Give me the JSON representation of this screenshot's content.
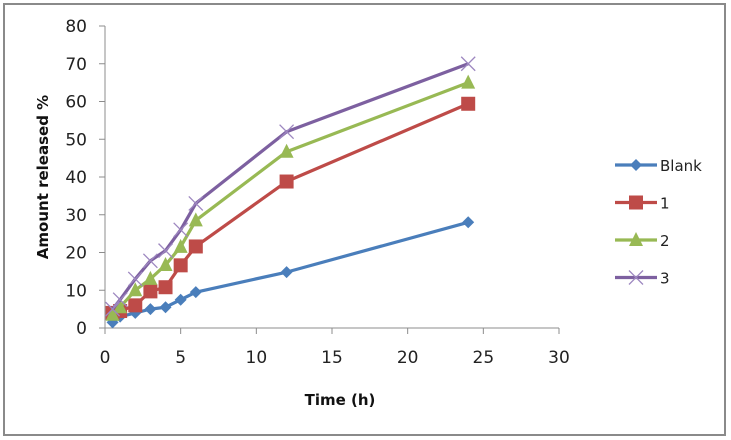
{
  "chart_data": {
    "type": "line",
    "title": "",
    "xlabel": "Time (h)",
    "ylabel": "Amount released %",
    "xlim": [
      0,
      30
    ],
    "ylim": [
      0,
      80
    ],
    "xticks": [
      0,
      5,
      10,
      15,
      20,
      25,
      30
    ],
    "yticks": [
      0,
      10,
      20,
      30,
      40,
      50,
      60,
      70,
      80
    ],
    "grid": false,
    "legend_position": "right",
    "x": [
      0.5,
      1,
      2,
      3,
      4,
      5,
      6,
      12,
      24
    ],
    "series": [
      {
        "name": "Blank",
        "color": "#4a7ebb",
        "marker": "diamond",
        "values": [
          1.5,
          3,
          4,
          5,
          5.5,
          7.5,
          9.5,
          14.8,
          28
        ]
      },
      {
        "name": "1",
        "color": "#be4b48",
        "marker": "square",
        "values": [
          4,
          4.5,
          6,
          9.7,
          10.8,
          16.6,
          21.6,
          38.8,
          59.4
        ]
      },
      {
        "name": "2",
        "color": "#98b954",
        "marker": "triangle",
        "values": [
          3.5,
          5.5,
          10,
          13,
          16.7,
          21.5,
          28.5,
          46.7,
          65
        ]
      },
      {
        "name": "3",
        "color": "#7d60a0",
        "marker": "x",
        "values": [
          5,
          7.5,
          13,
          17.8,
          20.5,
          26,
          33,
          52,
          70
        ]
      }
    ]
  }
}
